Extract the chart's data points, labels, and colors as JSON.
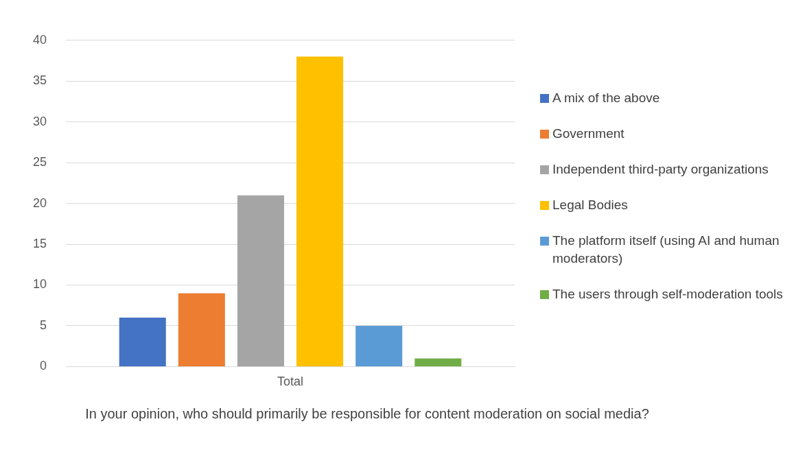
{
  "chart_data": {
    "type": "bar",
    "xlabel": "In your opinion, who should primarily be responsible for content moderation on social media?",
    "categories": [
      "Total"
    ],
    "series": [
      {
        "name": "A mix of the above",
        "color": "#4472c4",
        "values": [
          6
        ]
      },
      {
        "name": "Government",
        "color": "#ed7d31",
        "values": [
          9
        ]
      },
      {
        "name": "Independent third-party organizations",
        "color": "#a5a5a5",
        "values": [
          21
        ]
      },
      {
        "name": "Legal Bodies",
        "color": "#ffc000",
        "values": [
          38
        ]
      },
      {
        "name": "The platform itself (using AI and human moderators)",
        "color": "#5b9bd5",
        "values": [
          5
        ]
      },
      {
        "name": "The users through self-moderation tools",
        "color": "#70ad47",
        "values": [
          1
        ]
      }
    ],
    "ylim": [
      0,
      40
    ],
    "yticks": [
      0,
      5,
      10,
      15,
      20,
      25,
      30,
      35,
      40
    ],
    "grid": "y",
    "legend": "right"
  }
}
